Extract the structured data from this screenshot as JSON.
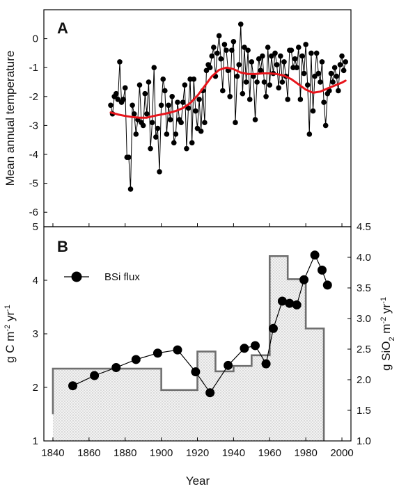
{
  "chart_data": [
    {
      "panel": "A",
      "type": "line",
      "xlabel": "Year",
      "ylabel": "Mean annual temperature",
      "xlim": [
        1835,
        2005
      ],
      "ylim": [
        -6.5,
        1.0
      ],
      "x_ticks": [
        1840,
        1860,
        1880,
        1900,
        1920,
        1940,
        1960,
        1980,
        2000
      ],
      "y_ticks": [
        -6,
        -5,
        -4,
        -3,
        -2,
        -1,
        0
      ],
      "series": [
        {
          "kind": "annual",
          "color": "#000000",
          "points": [
            [
              1872,
              -2.3
            ],
            [
              1873,
              -2.6
            ],
            [
              1874,
              -2.0
            ],
            [
              1875,
              -1.9
            ],
            [
              1876,
              -2.1
            ],
            [
              1877,
              -0.8
            ],
            [
              1878,
              -2.2
            ],
            [
              1879,
              -2.1
            ],
            [
              1880,
              -1.7
            ],
            [
              1881,
              -4.1
            ],
            [
              1882,
              -4.1
            ],
            [
              1883,
              -5.2
            ],
            [
              1884,
              -2.3
            ],
            [
              1885,
              -2.6
            ],
            [
              1886,
              -3.3
            ],
            [
              1887,
              -2.8
            ],
            [
              1888,
              -1.6
            ],
            [
              1889,
              -2.9
            ],
            [
              1890,
              -3.0
            ],
            [
              1891,
              -1.9
            ],
            [
              1892,
              -2.6
            ],
            [
              1893,
              -1.5
            ],
            [
              1894,
              -3.8
            ],
            [
              1895,
              -2.9
            ],
            [
              1896,
              -1.0
            ],
            [
              1897,
              -3.4
            ],
            [
              1898,
              -3.1
            ],
            [
              1899,
              -4.6
            ],
            [
              1900,
              -2.3
            ],
            [
              1901,
              -1.4
            ],
            [
              1902,
              -1.8
            ],
            [
              1903,
              -3.3
            ],
            [
              1904,
              -2.3
            ],
            [
              1905,
              -2.8
            ],
            [
              1906,
              -2.0
            ],
            [
              1907,
              -3.6
            ],
            [
              1908,
              -3.3
            ],
            [
              1909,
              -2.2
            ],
            [
              1910,
              -2.8
            ],
            [
              1911,
              -2.9
            ],
            [
              1912,
              -2.2
            ],
            [
              1913,
              -1.6
            ],
            [
              1914,
              -3.8
            ],
            [
              1915,
              -2.4
            ],
            [
              1916,
              -1.4
            ],
            [
              1917,
              -3.6
            ],
            [
              1918,
              -1.4
            ],
            [
              1919,
              -2.5
            ],
            [
              1920,
              -3.1
            ],
            [
              1921,
              -2.1
            ],
            [
              1922,
              -3.2
            ],
            [
              1923,
              -1.8
            ],
            [
              1924,
              -2.9
            ],
            [
              1925,
              -1.1
            ],
            [
              1926,
              -0.9
            ],
            [
              1927,
              -1.0
            ],
            [
              1928,
              -0.6
            ],
            [
              1929,
              -0.3
            ],
            [
              1930,
              -1.3
            ],
            [
              1931,
              -0.5
            ],
            [
              1932,
              0.1
            ],
            [
              1933,
              -0.7
            ],
            [
              1934,
              -1.8
            ],
            [
              1935,
              -0.2
            ],
            [
              1936,
              -0.4
            ],
            [
              1937,
              -1.1
            ],
            [
              1938,
              -2.0
            ],
            [
              1939,
              -0.4
            ],
            [
              1940,
              -0.1
            ],
            [
              1941,
              -2.9
            ],
            [
              1942,
              -1.3
            ],
            [
              1943,
              -0.9
            ],
            [
              1944,
              0.5
            ],
            [
              1945,
              -1.9
            ],
            [
              1946,
              -0.3
            ],
            [
              1947,
              -1.5
            ],
            [
              1948,
              -0.4
            ],
            [
              1949,
              -2.1
            ],
            [
              1950,
              -0.8
            ],
            [
              1951,
              -1.3
            ],
            [
              1952,
              -2.8
            ],
            [
              1953,
              -1.5
            ],
            [
              1954,
              -0.7
            ],
            [
              1955,
              -1.1
            ],
            [
              1956,
              -0.6
            ],
            [
              1957,
              -1.5
            ],
            [
              1958,
              -2.0
            ],
            [
              1959,
              -0.3
            ],
            [
              1960,
              -1.6
            ],
            [
              1961,
              -0.6
            ],
            [
              1962,
              -1.2
            ],
            [
              1963,
              -0.5
            ],
            [
              1964,
              -0.9
            ],
            [
              1965,
              -1.7
            ],
            [
              1966,
              -0.6
            ],
            [
              1967,
              -1.5
            ],
            [
              1968,
              -0.8
            ],
            [
              1969,
              -1.3
            ],
            [
              1970,
              -2.1
            ],
            [
              1971,
              -0.4
            ],
            [
              1972,
              -0.4
            ],
            [
              1973,
              -1.0
            ],
            [
              1974,
              -0.7
            ],
            [
              1975,
              -1.0
            ],
            [
              1976,
              -0.3
            ],
            [
              1977,
              -2.1
            ],
            [
              1978,
              -0.6
            ],
            [
              1979,
              -1.2
            ],
            [
              1980,
              -0.2
            ],
            [
              1981,
              -1.6
            ],
            [
              1982,
              -3.3
            ],
            [
              1983,
              -0.5
            ],
            [
              1984,
              -2.5
            ],
            [
              1985,
              -1.3
            ],
            [
              1986,
              -0.5
            ],
            [
              1987,
              -1.2
            ],
            [
              1988,
              -1.5
            ],
            [
              1989,
              -0.8
            ],
            [
              1990,
              -2.2
            ],
            [
              1991,
              -3.0
            ],
            [
              1992,
              -1.9
            ],
            [
              1993,
              -1.8
            ],
            [
              1994,
              -1.2
            ],
            [
              1995,
              -1.5
            ],
            [
              1996,
              -1.0
            ],
            [
              1997,
              -1.3
            ],
            [
              1998,
              -1.8
            ],
            [
              1999,
              -0.9
            ],
            [
              2000,
              -0.6
            ],
            [
              2001,
              -1.1
            ],
            [
              2002,
              -0.8
            ]
          ]
        },
        {
          "kind": "smoothed",
          "color": "#e8141b",
          "points": [
            [
              1872,
              -2.55
            ],
            [
              1876,
              -2.62
            ],
            [
              1880,
              -2.67
            ],
            [
              1884,
              -2.71
            ],
            [
              1888,
              -2.73
            ],
            [
              1892,
              -2.73
            ],
            [
              1896,
              -2.67
            ],
            [
              1900,
              -2.62
            ],
            [
              1904,
              -2.57
            ],
            [
              1908,
              -2.5
            ],
            [
              1912,
              -2.4
            ],
            [
              1916,
              -2.23
            ],
            [
              1920,
              -1.97
            ],
            [
              1924,
              -1.64
            ],
            [
              1928,
              -1.3
            ],
            [
              1932,
              -1.08
            ],
            [
              1936,
              -1.0
            ],
            [
              1940,
              -1.05
            ],
            [
              1944,
              -1.17
            ],
            [
              1948,
              -1.22
            ],
            [
              1952,
              -1.22
            ],
            [
              1956,
              -1.2
            ],
            [
              1960,
              -1.2
            ],
            [
              1964,
              -1.22
            ],
            [
              1968,
              -1.28
            ],
            [
              1972,
              -1.4
            ],
            [
              1976,
              -1.58
            ],
            [
              1980,
              -1.76
            ],
            [
              1984,
              -1.87
            ],
            [
              1988,
              -1.83
            ],
            [
              1992,
              -1.72
            ],
            [
              1996,
              -1.62
            ],
            [
              2000,
              -1.52
            ],
            [
              2002,
              -1.45
            ]
          ]
        }
      ]
    },
    {
      "panel": "B",
      "type": "line",
      "xlabel": "Year",
      "ylabel_left": "g C m-2 yr-1",
      "ylabel_right": "g SiO2 m-2 yr-1",
      "xlim": [
        1835,
        2005
      ],
      "ylim_left": [
        1,
        5
      ],
      "ylim_right": [
        1.0,
        4.5
      ],
      "x_ticks": [
        1840,
        1860,
        1880,
        1900,
        1920,
        1940,
        1960,
        1980,
        2000
      ],
      "y_ticks_left": [
        1,
        2,
        3,
        4,
        5
      ],
      "y_ticks_right": [
        1.0,
        1.5,
        2.0,
        2.5,
        3.0,
        3.5,
        4.0,
        4.5
      ],
      "legend": {
        "label": "BSi flux",
        "position": "top-left"
      },
      "series": [
        {
          "kind": "step_area",
          "axis": "left",
          "fill": "stippled gray",
          "edge_color": "#6f6f6f",
          "steps": [
            [
              1840,
              1900,
              2.35
            ],
            [
              1900,
              1920,
              1.95
            ],
            [
              1920,
              1930,
              2.67
            ],
            [
              1930,
              1940,
              2.3
            ],
            [
              1940,
              1950,
              2.4
            ],
            [
              1950,
              1960,
              2.6
            ],
            [
              1960,
              1970,
              4.45
            ],
            [
              1970,
              1980,
              4.02
            ],
            [
              1980,
              1990,
              3.1
            ]
          ]
        },
        {
          "name": "BSi flux",
          "kind": "markers_line",
          "axis": "left",
          "color": "#000000",
          "points": [
            [
              1851,
              2.03
            ],
            [
              1863,
              2.22
            ],
            [
              1875,
              2.37
            ],
            [
              1886,
              2.52
            ],
            [
              1898,
              2.64
            ],
            [
              1909,
              2.7
            ],
            [
              1919,
              2.29
            ],
            [
              1927,
              1.9
            ],
            [
              1937,
              2.41
            ],
            [
              1946,
              2.73
            ],
            [
              1952,
              2.78
            ],
            [
              1958,
              2.44
            ],
            [
              1962,
              3.1
            ],
            [
              1967,
              3.61
            ],
            [
              1971,
              3.57
            ],
            [
              1975,
              3.54
            ],
            [
              1979,
              4.01
            ],
            [
              1985,
              4.47
            ],
            [
              1989,
              4.19
            ],
            [
              1992,
              3.91
            ]
          ]
        }
      ]
    }
  ]
}
